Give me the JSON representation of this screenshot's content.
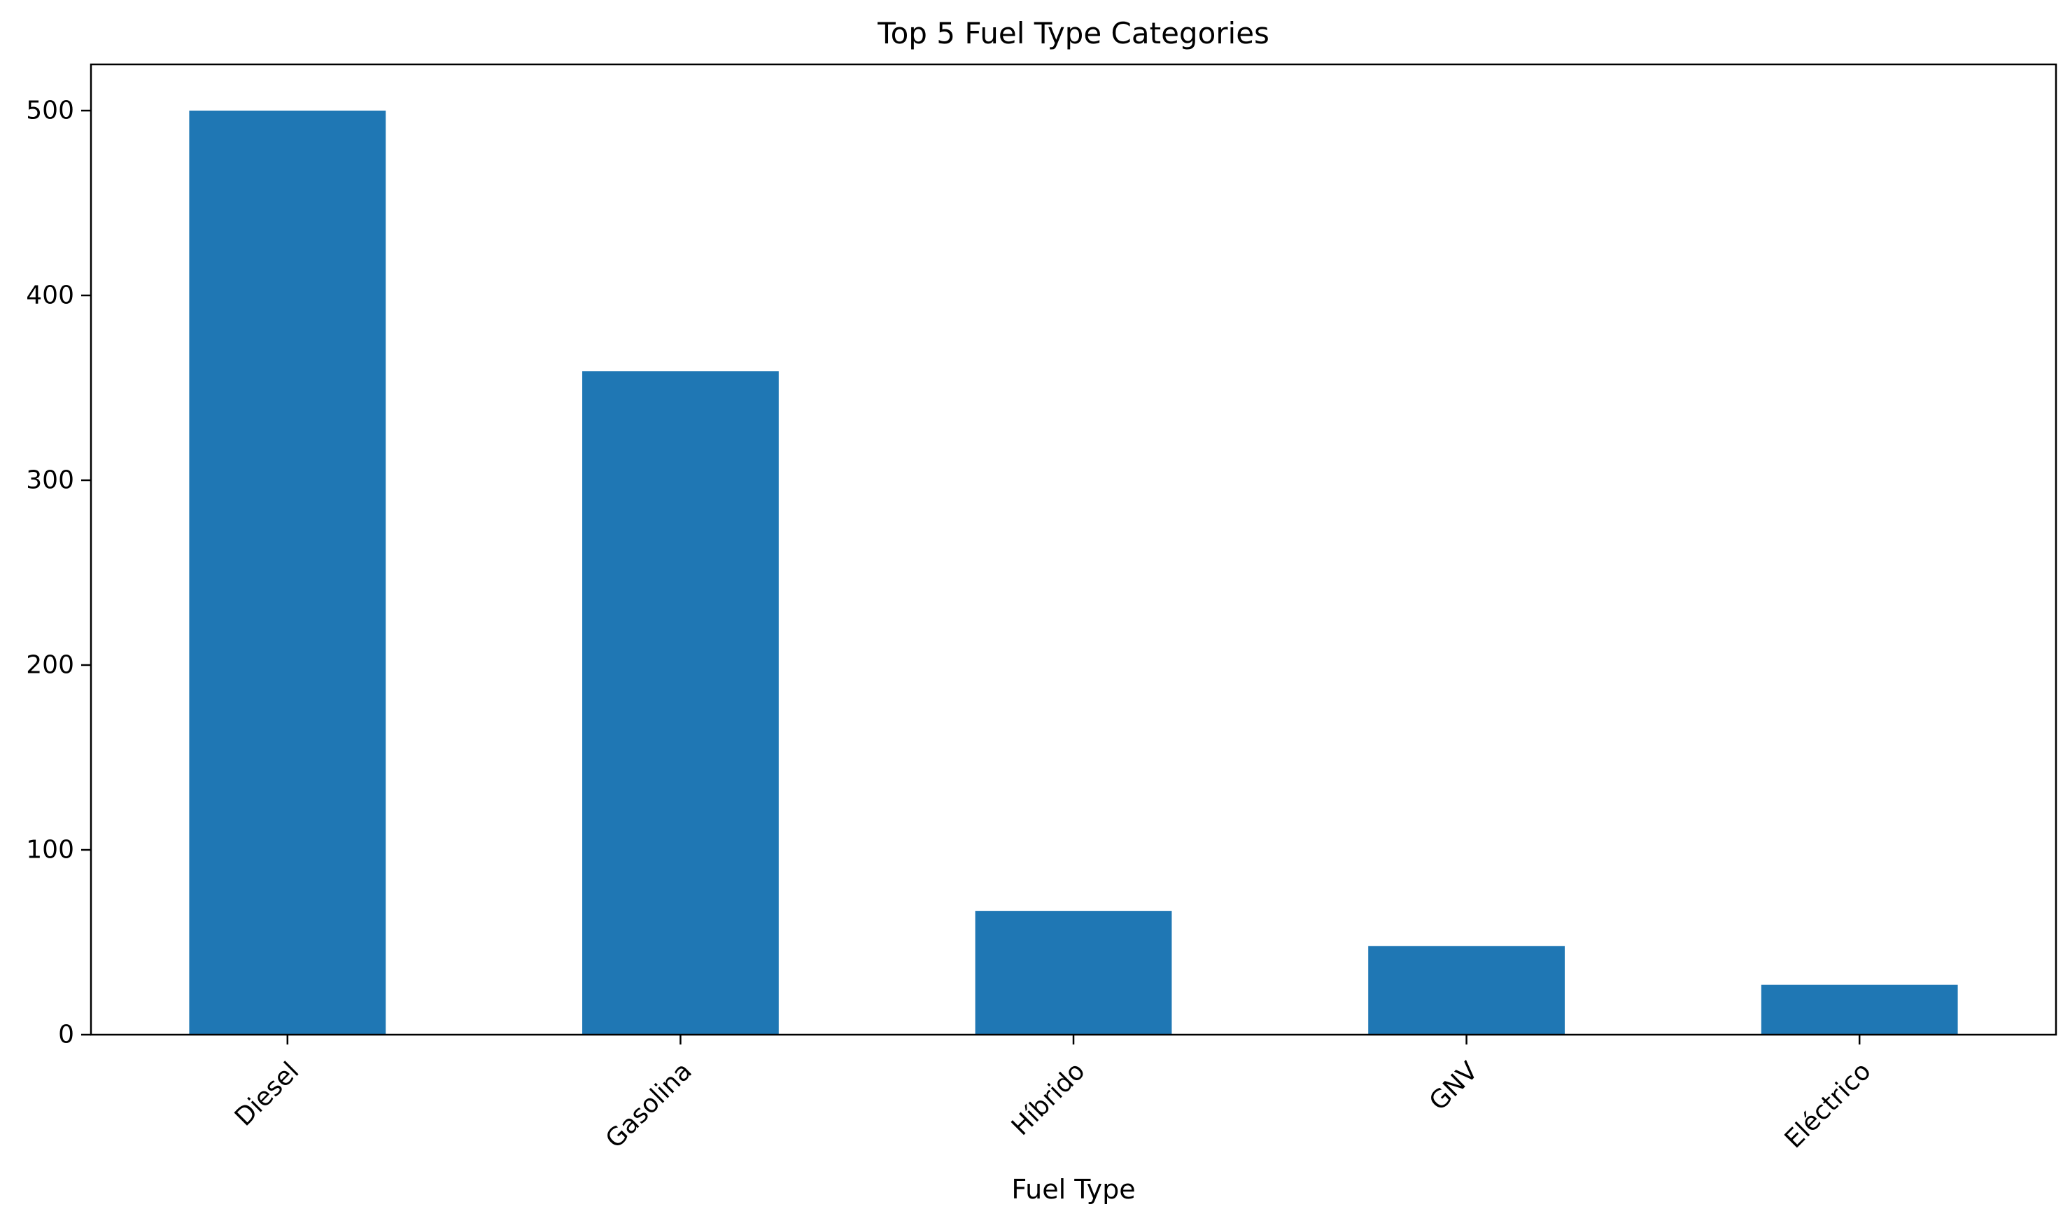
{
  "chart_data": {
    "type": "bar",
    "title": "Top 5 Fuel Type Categories",
    "xlabel": "Fuel Type",
    "ylabel": "",
    "categories": [
      "Diesel",
      "Gasolina",
      "Híbrido",
      "GNV",
      "Eléctrico"
    ],
    "values": [
      500,
      359,
      67,
      48,
      27
    ],
    "ylim": [
      0,
      525
    ],
    "yticks": [
      0,
      100,
      200,
      300,
      400,
      500
    ],
    "grid": false,
    "bar_color": "#1f77b4"
  }
}
